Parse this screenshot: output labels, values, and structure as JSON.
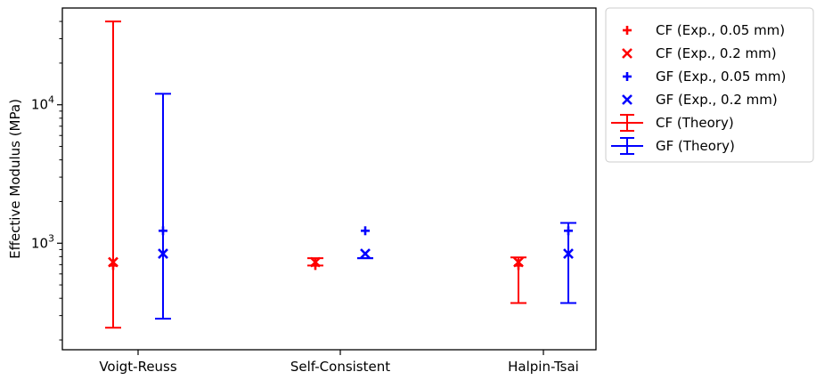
{
  "chart_data": {
    "type": "scatter",
    "ylabel": "Effective Modulus (MPa)",
    "yscale": "log",
    "ylim": [
      170,
      50000
    ],
    "y_ticks": [
      {
        "value": 1000,
        "base": "10",
        "exp": "3"
      },
      {
        "value": 10000,
        "base": "10",
        "exp": "4"
      }
    ],
    "categories": [
      "Voigt-Reuss",
      "Self-Consistent",
      "Halpin-Tsai"
    ],
    "grid": false,
    "legend_position": "outside-right",
    "colors": {
      "CF": "#ff0000",
      "GF": "#0000ff"
    },
    "series": [
      {
        "name": "CF (Exp., 0.05 mm)",
        "marker": "plus",
        "color": "#ff0000",
        "values": [
          690,
          690,
          690
        ]
      },
      {
        "name": "CF (Exp., 0.2 mm)",
        "marker": "x",
        "color": "#ff0000",
        "values": [
          730,
          730,
          730
        ]
      },
      {
        "name": "GF (Exp., 0.05 mm)",
        "marker": "plus",
        "color": "#0000ff",
        "values": [
          1230,
          1230,
          1230
        ]
      },
      {
        "name": "GF (Exp., 0.2 mm)",
        "marker": "x",
        "color": "#0000ff",
        "values": [
          840,
          840,
          840
        ]
      },
      {
        "name": "CF (Theory)",
        "marker": "errorbar",
        "color": "#ff0000",
        "ranges": [
          [
            245,
            40000
          ],
          [
            690,
            780
          ],
          [
            370,
            790
          ]
        ]
      },
      {
        "name": "GF (Theory)",
        "marker": "errorbar",
        "color": "#0000ff",
        "ranges": [
          [
            285,
            12000
          ],
          [
            780,
            780
          ],
          [
            370,
            1400
          ]
        ]
      }
    ]
  }
}
